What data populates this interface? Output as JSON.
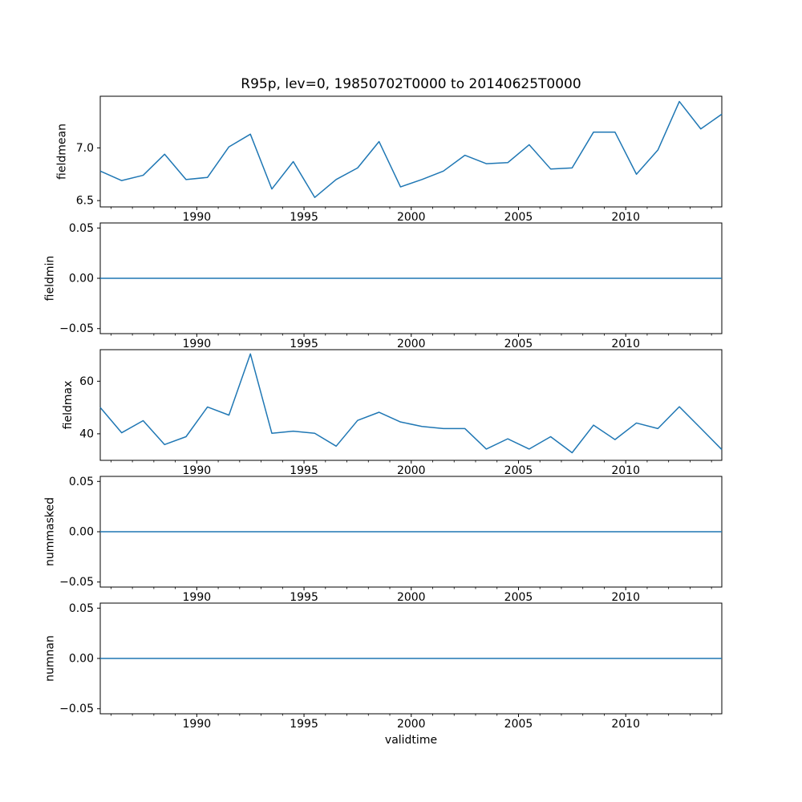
{
  "figure": {
    "title": "R95p, lev=0, 19850702T0000 to 20140625T0000",
    "xlabel": "validtime",
    "background": "#ffffff",
    "line_color": "#1f77b4",
    "axis_color": "#000000"
  },
  "chart_data": [
    {
      "type": "line",
      "name": "fieldmean",
      "ylabel": "fieldmean",
      "x": [
        1985.5,
        1986.5,
        1987.5,
        1988.5,
        1989.5,
        1990.5,
        1991.5,
        1992.5,
        1993.5,
        1994.5,
        1995.5,
        1996.5,
        1997.5,
        1998.5,
        1999.5,
        2000.5,
        2001.5,
        2002.5,
        2003.5,
        2004.5,
        2005.5,
        2006.5,
        2007.5,
        2008.5,
        2009.5,
        2010.5,
        2011.5,
        2012.5,
        2013.5,
        2014.48
      ],
      "values": [
        6.78,
        6.69,
        6.74,
        6.94,
        6.7,
        6.72,
        7.01,
        7.13,
        6.61,
        6.87,
        6.53,
        6.7,
        6.81,
        7.06,
        6.63,
        6.7,
        6.78,
        6.93,
        6.85,
        6.86,
        7.03,
        6.8,
        6.81,
        7.15,
        7.15,
        6.75,
        6.98,
        7.44,
        7.18,
        7.32
      ],
      "xlim": [
        1985.5,
        2014.48
      ],
      "ylim": [
        6.44,
        7.49
      ],
      "xticks": [
        1990,
        1995,
        2000,
        2005,
        2010
      ],
      "xtick_labels": [
        "1990",
        "1995",
        "2000",
        "2005",
        "2010"
      ],
      "yticks": [
        6.5,
        7.0
      ],
      "ytick_labels": [
        "6.5",
        "7.0"
      ],
      "minor_xticks": "yearly",
      "grid": false,
      "legend": "none"
    },
    {
      "type": "line",
      "name": "fieldmin",
      "ylabel": "fieldmin",
      "x": [
        1985.5,
        1986.5,
        1987.5,
        1988.5,
        1989.5,
        1990.5,
        1991.5,
        1992.5,
        1993.5,
        1994.5,
        1995.5,
        1996.5,
        1997.5,
        1998.5,
        1999.5,
        2000.5,
        2001.5,
        2002.5,
        2003.5,
        2004.5,
        2005.5,
        2006.5,
        2007.5,
        2008.5,
        2009.5,
        2010.5,
        2011.5,
        2012.5,
        2013.5,
        2014.48
      ],
      "values": [
        0,
        0,
        0,
        0,
        0,
        0,
        0,
        0,
        0,
        0,
        0,
        0,
        0,
        0,
        0,
        0,
        0,
        0,
        0,
        0,
        0,
        0,
        0,
        0,
        0,
        0,
        0,
        0,
        0,
        0
      ],
      "xlim": [
        1985.5,
        2014.48
      ],
      "ylim": [
        -0.055,
        0.055
      ],
      "xticks": [
        1990,
        1995,
        2000,
        2005,
        2010
      ],
      "xtick_labels": [
        "1990",
        "1995",
        "2000",
        "2005",
        "2010"
      ],
      "yticks": [
        -0.05,
        0.0,
        0.05
      ],
      "ytick_labels": [
        "−0.05",
        "0.00",
        "0.05"
      ],
      "minor_xticks": "yearly",
      "grid": false,
      "legend": "none"
    },
    {
      "type": "line",
      "name": "fieldmax",
      "ylabel": "fieldmax",
      "x": [
        1985.5,
        1986.5,
        1987.5,
        1988.5,
        1989.5,
        1990.5,
        1991.5,
        1992.5,
        1993.5,
        1994.5,
        1995.5,
        1996.5,
        1997.5,
        1998.5,
        1999.5,
        2000.5,
        2001.5,
        2002.5,
        2003.5,
        2004.5,
        2005.5,
        2006.5,
        2007.5,
        2008.5,
        2009.5,
        2010.5,
        2011.5,
        2012.5,
        2013.5,
        2014.48
      ],
      "values": [
        50.0,
        40.4,
        45.0,
        35.9,
        38.9,
        50.2,
        47.1,
        70.4,
        40.2,
        41.0,
        40.2,
        35.3,
        45.1,
        48.2,
        44.5,
        42.8,
        42.0,
        42.0,
        34.2,
        38.1,
        34.2,
        38.9,
        32.8,
        43.3,
        37.8,
        44.1,
        42.0,
        50.3,
        42.1,
        34.0
      ],
      "xlim": [
        1985.5,
        2014.48
      ],
      "ylim": [
        29.9,
        72.0
      ],
      "xticks": [
        1990,
        1995,
        2000,
        2005,
        2010
      ],
      "xtick_labels": [
        "1990",
        "1995",
        "2000",
        "2005",
        "2010"
      ],
      "yticks": [
        40,
        60
      ],
      "ytick_labels": [
        "40",
        "60"
      ],
      "minor_xticks": "yearly",
      "grid": false,
      "legend": "none"
    },
    {
      "type": "line",
      "name": "nummasked",
      "ylabel": "nummasked",
      "x": [
        1985.5,
        1986.5,
        1987.5,
        1988.5,
        1989.5,
        1990.5,
        1991.5,
        1992.5,
        1993.5,
        1994.5,
        1995.5,
        1996.5,
        1997.5,
        1998.5,
        1999.5,
        2000.5,
        2001.5,
        2002.5,
        2003.5,
        2004.5,
        2005.5,
        2006.5,
        2007.5,
        2008.5,
        2009.5,
        2010.5,
        2011.5,
        2012.5,
        2013.5,
        2014.48
      ],
      "values": [
        0,
        0,
        0,
        0,
        0,
        0,
        0,
        0,
        0,
        0,
        0,
        0,
        0,
        0,
        0,
        0,
        0,
        0,
        0,
        0,
        0,
        0,
        0,
        0,
        0,
        0,
        0,
        0,
        0,
        0
      ],
      "xlim": [
        1985.5,
        2014.48
      ],
      "ylim": [
        -0.055,
        0.055
      ],
      "xticks": [
        1990,
        1995,
        2000,
        2005,
        2010
      ],
      "xtick_labels": [
        "1990",
        "1995",
        "2000",
        "2005",
        "2010"
      ],
      "yticks": [
        -0.05,
        0.0,
        0.05
      ],
      "ytick_labels": [
        "−0.05",
        "0.00",
        "0.05"
      ],
      "minor_xticks": "yearly",
      "grid": false,
      "legend": "none"
    },
    {
      "type": "line",
      "name": "numnan",
      "ylabel": "numnan",
      "x": [
        1985.5,
        1986.5,
        1987.5,
        1988.5,
        1989.5,
        1990.5,
        1991.5,
        1992.5,
        1993.5,
        1994.5,
        1995.5,
        1996.5,
        1997.5,
        1998.5,
        1999.5,
        2000.5,
        2001.5,
        2002.5,
        2003.5,
        2004.5,
        2005.5,
        2006.5,
        2007.5,
        2008.5,
        2009.5,
        2010.5,
        2011.5,
        2012.5,
        2013.5,
        2014.48
      ],
      "values": [
        0,
        0,
        0,
        0,
        0,
        0,
        0,
        0,
        0,
        0,
        0,
        0,
        0,
        0,
        0,
        0,
        0,
        0,
        0,
        0,
        0,
        0,
        0,
        0,
        0,
        0,
        0,
        0,
        0,
        0
      ],
      "xlim": [
        1985.5,
        2014.48
      ],
      "ylim": [
        -0.055,
        0.055
      ],
      "xticks": [
        1990,
        1995,
        2000,
        2005,
        2010
      ],
      "xtick_labels": [
        "1990",
        "1995",
        "2000",
        "2005",
        "2010"
      ],
      "yticks": [
        -0.05,
        0.0,
        0.05
      ],
      "ytick_labels": [
        "−0.05",
        "0.00",
        "0.05"
      ],
      "minor_xticks": "yearly",
      "grid": false,
      "legend": "none"
    }
  ]
}
